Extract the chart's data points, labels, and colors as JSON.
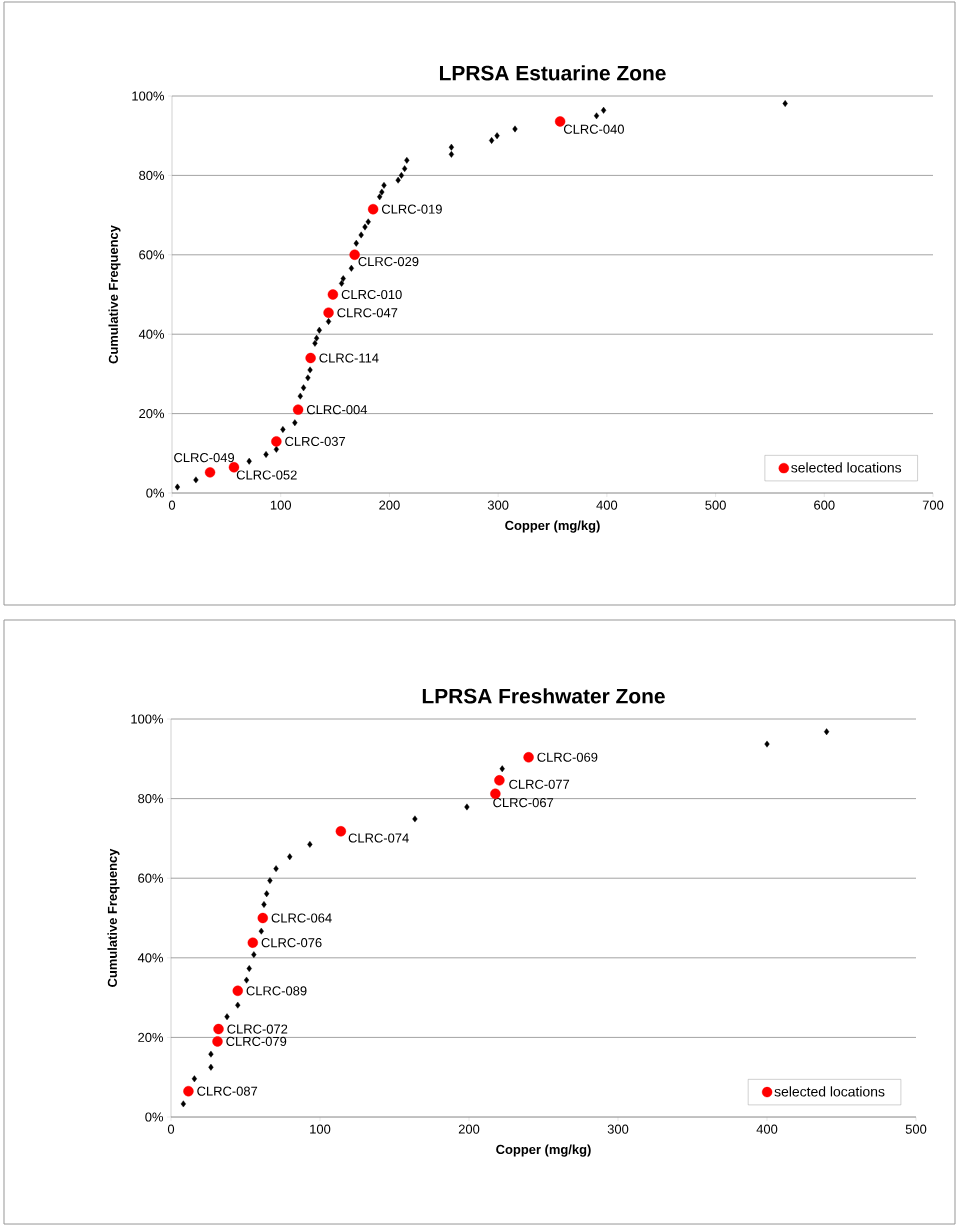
{
  "chart_data": [
    {
      "type": "scatter",
      "title": "LPRSA Estuarine Zone",
      "xlabel": "Copper (mg/kg)",
      "ylabel": "Cumulative Frequency",
      "xlim": [
        0,
        700
      ],
      "xticks": [
        0,
        100,
        200,
        300,
        400,
        500,
        600,
        700
      ],
      "ylim": [
        0,
        100
      ],
      "yticks": [
        {
          "value": 0,
          "label": "0%"
        },
        {
          "value": 20,
          "label": "20%"
        },
        {
          "value": 40,
          "label": "40%"
        },
        {
          "value": 60,
          "label": "60%"
        },
        {
          "value": 80,
          "label": "80%"
        },
        {
          "value": 100,
          "label": "100%"
        }
      ],
      "grid": "y",
      "legend": "bottom right",
      "series": [
        {
          "color": "#000000",
          "marker": "diamond",
          "x": [
            5,
            22,
            71,
            86.5,
            96,
            102,
            113,
            118,
            121,
            125,
            127,
            131.5,
            133,
            135.5,
            144,
            156,
            157.5,
            165,
            169.5,
            174,
            177.5,
            180.5,
            191,
            193,
            195,
            208,
            211,
            214,
            216,
            257,
            257,
            294,
            299,
            315.5,
            390.5,
            397,
            564
          ],
          "values": [
            1.5,
            3.3,
            8,
            9.7,
            11,
            16,
            17.7,
            24.4,
            26.5,
            29,
            31,
            37.7,
            39,
            41,
            43.2,
            52.8,
            54,
            56.6,
            62.9,
            65,
            67,
            68.3,
            74.6,
            75.8,
            77.5,
            78.8,
            80,
            81.7,
            83.8,
            87.1,
            85.3,
            88.8,
            90,
            91.7,
            95,
            96.4,
            98.1
          ]
        },
        {
          "name": "selected locations",
          "color": "#ff0000",
          "marker": "circle",
          "x": [
            357,
            185,
            168,
            148,
            144,
            127.5,
            116,
            96,
            35,
            57
          ],
          "values": [
            93.6,
            71.5,
            60,
            50,
            45.4,
            34,
            21,
            13,
            5.2,
            6.5
          ]
        }
      ],
      "annotations": [
        {
          "text": "CLRC-040",
          "x": 357,
          "y": 93.6
        },
        {
          "text": "CLRC-019",
          "x": 185,
          "y": 71.5
        },
        {
          "text": "CLRC-029",
          "x": 168,
          "y": 60
        },
        {
          "text": "CLRC-010",
          "x": 148,
          "y": 50
        },
        {
          "text": "CLRC-047",
          "x": 144,
          "y": 45.4
        },
        {
          "text": "CLRC-114",
          "x": 127.5,
          "y": 34
        },
        {
          "text": "CLRC-004",
          "x": 116,
          "y": 21
        },
        {
          "text": "CLRC-037",
          "x": 96,
          "y": 13
        },
        {
          "text": "CLRC-049",
          "x": 35,
          "y": 5.2
        },
        {
          "text": "CLRC-052",
          "x": 57,
          "y": 6.5
        }
      ]
    },
    {
      "type": "scatter",
      "title": "LPRSA Freshwater Zone",
      "xlabel": "Copper (mg/kg)",
      "ylabel": "Cumulative Frequency",
      "xlim": [
        0,
        500
      ],
      "xticks": [
        0,
        100,
        200,
        300,
        400,
        500
      ],
      "ylim": [
        0,
        100
      ],
      "yticks": [
        {
          "value": 0,
          "label": "0%"
        },
        {
          "value": 20,
          "label": "20%"
        },
        {
          "value": 40,
          "label": "40%"
        },
        {
          "value": 60,
          "label": "60%"
        },
        {
          "value": 80,
          "label": "80%"
        },
        {
          "value": 100,
          "label": "100%"
        }
      ],
      "grid": "y",
      "legend": "bottom right",
      "series": [
        {
          "color": "#000000",
          "marker": "diamond",
          "x": [
            8.3,
            15.7,
            26.8,
            26.8,
            37.6,
            44.8,
            50.7,
            52.5,
            55.6,
            60.6,
            62.4,
            64.2,
            66.4,
            70.5,
            79.7,
            93.2,
            163.7,
            198.6,
            222.3,
            400,
            440
          ],
          "values": [
            3.3,
            9.6,
            12.5,
            15.8,
            25.2,
            28.1,
            34.4,
            37.3,
            40.8,
            46.7,
            53.4,
            56.1,
            59.4,
            62.4,
            65.4,
            68.5,
            74.9,
            77.9,
            87.5,
            93.7,
            96.8
          ]
        },
        {
          "name": "selected locations",
          "color": "#ff0000",
          "marker": "circle",
          "x": [
            11.7,
            31.2,
            31.9,
            44.8,
            54.9,
            61.6,
            114,
            220.4,
            217.7,
            240
          ],
          "values": [
            6.5,
            19,
            22.1,
            31.7,
            43.8,
            50,
            71.8,
            84.6,
            81.2,
            90.4
          ]
        }
      ],
      "annotations": [
        {
          "text": "CLRC-087",
          "x": 11.7,
          "y": 6.5
        },
        {
          "text": "CLRC-079",
          "x": 31.2,
          "y": 19
        },
        {
          "text": "CLRC-072",
          "x": 31.9,
          "y": 22.1
        },
        {
          "text": "CLRC-089",
          "x": 44.8,
          "y": 31.7
        },
        {
          "text": "CLRC-076",
          "x": 54.9,
          "y": 43.8
        },
        {
          "text": "CLRC-064",
          "x": 61.6,
          "y": 50
        },
        {
          "text": "CLRC-074",
          "x": 114,
          "y": 71.8
        },
        {
          "text": "CLRC-077",
          "x": 220.4,
          "y": 84.6
        },
        {
          "text": "CLRC-067",
          "x": 217.7,
          "y": 81.2
        },
        {
          "text": "CLRC-069",
          "x": 240,
          "y": 90.4
        }
      ]
    }
  ]
}
